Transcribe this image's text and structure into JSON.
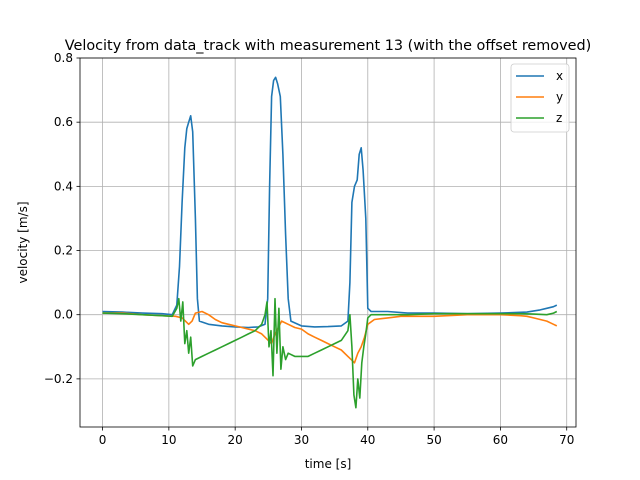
{
  "chart_data": {
    "type": "line",
    "title": "Velocity from data_track with measurement 13 (with the offset removed)",
    "xlabel": "time [s]",
    "ylabel": "velocity [m/s]",
    "xlim": [
      -3.4,
      71.4
    ],
    "ylim": [
      -0.35,
      0.8
    ],
    "xticks": [
      0,
      10,
      20,
      30,
      40,
      50,
      60,
      70
    ],
    "yticks": [
      -0.2,
      0.0,
      0.2,
      0.4,
      0.6,
      0.8
    ],
    "xtick_labels": [
      "0",
      "10",
      "20",
      "30",
      "40",
      "50",
      "60",
      "70"
    ],
    "ytick_labels": [
      "−0.2",
      "0.0",
      "0.2",
      "0.4",
      "0.6",
      "0.8"
    ],
    "grid": true,
    "legend_position": "top-right",
    "series": [
      {
        "name": "x",
        "color": "#1f77b4",
        "points": [
          [
            0,
            0.01
          ],
          [
            3,
            0.008
          ],
          [
            6,
            0.005
          ],
          [
            9,
            0.003
          ],
          [
            10.5,
            0.0
          ],
          [
            11.2,
            0.03
          ],
          [
            11.6,
            0.15
          ],
          [
            12.0,
            0.35
          ],
          [
            12.4,
            0.52
          ],
          [
            12.7,
            0.58
          ],
          [
            13.0,
            0.6
          ],
          [
            13.3,
            0.62
          ],
          [
            13.6,
            0.57
          ],
          [
            14.0,
            0.3
          ],
          [
            14.3,
            0.05
          ],
          [
            14.6,
            -0.02
          ],
          [
            16,
            -0.03
          ],
          [
            18,
            -0.035
          ],
          [
            20,
            -0.038
          ],
          [
            22,
            -0.04
          ],
          [
            23.5,
            -0.038
          ],
          [
            24.5,
            -0.03
          ],
          [
            24.9,
            0.05
          ],
          [
            25.2,
            0.4
          ],
          [
            25.5,
            0.68
          ],
          [
            25.8,
            0.73
          ],
          [
            26.1,
            0.74
          ],
          [
            26.4,
            0.72
          ],
          [
            26.8,
            0.68
          ],
          [
            27.2,
            0.5
          ],
          [
            27.6,
            0.25
          ],
          [
            28.0,
            0.05
          ],
          [
            28.4,
            -0.02
          ],
          [
            30,
            -0.035
          ],
          [
            32,
            -0.038
          ],
          [
            34,
            -0.037
          ],
          [
            36,
            -0.035
          ],
          [
            37.0,
            -0.02
          ],
          [
            37.3,
            0.1
          ],
          [
            37.6,
            0.35
          ],
          [
            38.0,
            0.4
          ],
          [
            38.4,
            0.42
          ],
          [
            38.7,
            0.5
          ],
          [
            39.0,
            0.52
          ],
          [
            39.3,
            0.45
          ],
          [
            39.7,
            0.3
          ],
          [
            40.0,
            0.02
          ],
          [
            40.5,
            0.01
          ],
          [
            43,
            0.01
          ],
          [
            46,
            0.005
          ],
          [
            50,
            0.005
          ],
          [
            55,
            0.003
          ],
          [
            60,
            0.005
          ],
          [
            64,
            0.008
          ],
          [
            66,
            0.015
          ],
          [
            67,
            0.02
          ],
          [
            68,
            0.025
          ],
          [
            68.5,
            0.03
          ]
        ]
      },
      {
        "name": "y",
        "color": "#ff7f0e",
        "points": [
          [
            0,
            0.005
          ],
          [
            3,
            0.005
          ],
          [
            6,
            0.0
          ],
          [
            9,
            -0.003
          ],
          [
            11,
            -0.005
          ],
          [
            12,
            -0.01
          ],
          [
            12.5,
            -0.02
          ],
          [
            13,
            -0.03
          ],
          [
            13.5,
            -0.02
          ],
          [
            14,
            0.005
          ],
          [
            15,
            0.01
          ],
          [
            16,
            0.0
          ],
          [
            17,
            -0.015
          ],
          [
            18,
            -0.025
          ],
          [
            19,
            -0.03
          ],
          [
            20,
            -0.035
          ],
          [
            21,
            -0.04
          ],
          [
            22,
            -0.045
          ],
          [
            23,
            -0.05
          ],
          [
            24,
            -0.06
          ],
          [
            25,
            -0.08
          ],
          [
            25.5,
            -0.09
          ],
          [
            26,
            -0.06
          ],
          [
            26.5,
            -0.04
          ],
          [
            27,
            -0.02
          ],
          [
            28,
            -0.03
          ],
          [
            29,
            -0.04
          ],
          [
            30,
            -0.045
          ],
          [
            31,
            -0.06
          ],
          [
            32,
            -0.07
          ],
          [
            33,
            -0.08
          ],
          [
            34,
            -0.09
          ],
          [
            35,
            -0.1
          ],
          [
            36,
            -0.11
          ],
          [
            37,
            -0.13
          ],
          [
            37.5,
            -0.14
          ],
          [
            38,
            -0.15
          ],
          [
            38.5,
            -0.12
          ],
          [
            39,
            -0.1
          ],
          [
            39.5,
            -0.07
          ],
          [
            40,
            -0.03
          ],
          [
            41,
            -0.015
          ],
          [
            43,
            -0.01
          ],
          [
            45,
            -0.005
          ],
          [
            48,
            -0.005
          ],
          [
            50,
            -0.005
          ],
          [
            55,
            0.0
          ],
          [
            60,
            0.0
          ],
          [
            63,
            -0.003
          ],
          [
            64,
            -0.005
          ],
          [
            65,
            -0.01
          ],
          [
            66,
            -0.015
          ],
          [
            67,
            -0.02
          ],
          [
            67.5,
            -0.025
          ],
          [
            68,
            -0.03
          ],
          [
            68.5,
            -0.035
          ]
        ]
      },
      {
        "name": "z",
        "color": "#2ca02c",
        "points": [
          [
            0,
            0.005
          ],
          [
            3,
            0.003
          ],
          [
            6,
            0.0
          ],
          [
            9,
            -0.003
          ],
          [
            10.5,
            -0.005
          ],
          [
            11.2,
            0.02
          ],
          [
            11.5,
            0.05
          ],
          [
            11.8,
            -0.02
          ],
          [
            12.1,
            0.04
          ],
          [
            12.4,
            -0.09
          ],
          [
            12.7,
            -0.05
          ],
          [
            13.0,
            -0.12
          ],
          [
            13.3,
            -0.07
          ],
          [
            13.6,
            -0.16
          ],
          [
            14.0,
            -0.14
          ],
          [
            15,
            -0.13
          ],
          [
            16,
            -0.12
          ],
          [
            17,
            -0.11
          ],
          [
            18,
            -0.1
          ],
          [
            19,
            -0.09
          ],
          [
            20,
            -0.08
          ],
          [
            21,
            -0.07
          ],
          [
            22,
            -0.06
          ],
          [
            23,
            -0.05
          ],
          [
            24,
            -0.03
          ],
          [
            24.5,
            0.0
          ],
          [
            24.8,
            0.04
          ],
          [
            25.1,
            -0.1
          ],
          [
            25.4,
            -0.05
          ],
          [
            25.7,
            -0.19
          ],
          [
            26.0,
            0.05
          ],
          [
            26.3,
            -0.12
          ],
          [
            26.6,
            0.02
          ],
          [
            26.9,
            -0.17
          ],
          [
            27.2,
            -0.1
          ],
          [
            27.6,
            -0.14
          ],
          [
            28.0,
            -0.12
          ],
          [
            29,
            -0.13
          ],
          [
            30,
            -0.13
          ],
          [
            31,
            -0.13
          ],
          [
            32,
            -0.12
          ],
          [
            33,
            -0.11
          ],
          [
            34,
            -0.1
          ],
          [
            35,
            -0.09
          ],
          [
            36,
            -0.08
          ],
          [
            37.0,
            -0.05
          ],
          [
            37.3,
            0.0
          ],
          [
            37.6,
            -0.1
          ],
          [
            37.9,
            -0.25
          ],
          [
            38.2,
            -0.29
          ],
          [
            38.5,
            -0.2
          ],
          [
            38.8,
            -0.26
          ],
          [
            39.1,
            -0.15
          ],
          [
            39.4,
            -0.1
          ],
          [
            39.7,
            -0.06
          ],
          [
            40.0,
            -0.01
          ],
          [
            40.5,
            0.0
          ],
          [
            43,
            0.0
          ],
          [
            46,
            0.0
          ],
          [
            50,
            0.003
          ],
          [
            55,
            0.003
          ],
          [
            60,
            0.003
          ],
          [
            63,
            0.003
          ],
          [
            65,
            0.002
          ],
          [
            67,
            0.0
          ],
          [
            68,
            0.005
          ],
          [
            68.5,
            0.01
          ]
        ]
      }
    ]
  }
}
